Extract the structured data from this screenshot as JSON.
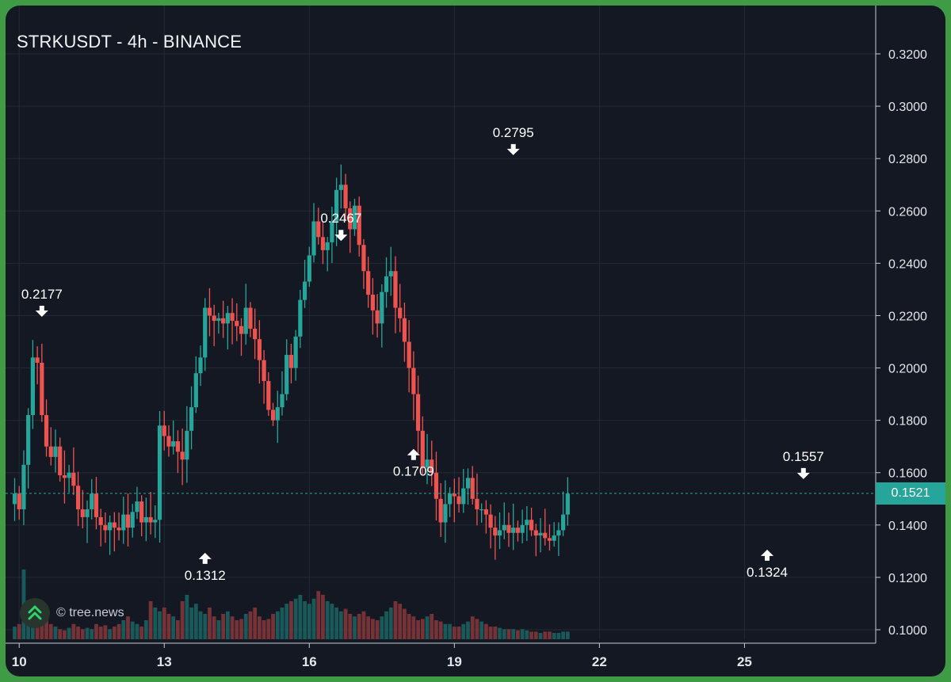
{
  "chart_data": {
    "type": "candlestick",
    "title": "STRKUSDT - 4h - BINANCE",
    "ylim": [
      0.095,
      0.33
    ],
    "y_ticks": [
      "0.3200",
      "0.3000",
      "0.2800",
      "0.2600",
      "0.2400",
      "0.2200",
      "0.2000",
      "0.1800",
      "0.1600",
      "0.1400",
      "0.1200",
      "0.1000"
    ],
    "y_tick_values": [
      0.32,
      0.3,
      0.28,
      0.26,
      0.24,
      0.22,
      0.2,
      0.18,
      0.16,
      0.14,
      0.12,
      0.1
    ],
    "x_ticks": [
      "10",
      "13",
      "16",
      "19",
      "22",
      "25"
    ],
    "x_tick_index": [
      1,
      33,
      65,
      97,
      129,
      161
    ],
    "last_price": "0.1521",
    "last_price_value": 0.1521,
    "up_color": "#26a69a",
    "down_color": "#ef5350",
    "annotations": [
      {
        "label": "0.2177",
        "index": 6,
        "price": 0.2177,
        "dir": "down"
      },
      {
        "label": "0.1312",
        "index": 42,
        "price": 0.1312,
        "dir": "up"
      },
      {
        "label": "0.2467",
        "index": 72,
        "price": 0.2467,
        "dir": "down"
      },
      {
        "label": "0.1709",
        "index": 88,
        "price": 0.1709,
        "dir": "up"
      },
      {
        "label": "0.2795",
        "index": 110,
        "price": 0.2795,
        "dir": "down"
      },
      {
        "label": "0.1324",
        "index": 166,
        "price": 0.1324,
        "dir": "up"
      },
      {
        "label": "0.1557",
        "index": 174,
        "price": 0.1557,
        "dir": "down"
      }
    ],
    "close_path": [
      0.152,
      0.146,
      0.163,
      0.182,
      0.204,
      0.202,
      0.182,
      0.17,
      0.166,
      0.17,
      0.159,
      0.158,
      0.16,
      0.155,
      0.146,
      0.143,
      0.146,
      0.152,
      0.143,
      0.14,
      0.138,
      0.141,
      0.139,
      0.138,
      0.144,
      0.139,
      0.145,
      0.149,
      0.141,
      0.143,
      0.141,
      0.142,
      0.178,
      0.174,
      0.17,
      0.172,
      0.168,
      0.165,
      0.176,
      0.185,
      0.198,
      0.204,
      0.223,
      0.22,
      0.218,
      0.219,
      0.217,
      0.221,
      0.218,
      0.216,
      0.213,
      0.223,
      0.215,
      0.211,
      0.203,
      0.195,
      0.184,
      0.18,
      0.185,
      0.19,
      0.205,
      0.2,
      0.212,
      0.226,
      0.233,
      0.243,
      0.256,
      0.25,
      0.245,
      0.248,
      0.256,
      0.268,
      0.27,
      0.261,
      0.253,
      0.262,
      0.247,
      0.237,
      0.228,
      0.222,
      0.217,
      0.229,
      0.235,
      0.237,
      0.223,
      0.219,
      0.21,
      0.2,
      0.19,
      0.176,
      0.162,
      0.165,
      0.16,
      0.15,
      0.141,
      0.148,
      0.152,
      0.151,
      0.148,
      0.154,
      0.158,
      0.15,
      0.146,
      0.146,
      0.144,
      0.139,
      0.136,
      0.138,
      0.14,
      0.137,
      0.139,
      0.137,
      0.14,
      0.142,
      0.138,
      0.136,
      0.137,
      0.135,
      0.134,
      0.136,
      0.138,
      0.144,
      0.152
    ],
    "volume_path": [
      0.1,
      0.12,
      0.55,
      0.3,
      0.25,
      0.2,
      0.18,
      0.15,
      0.12,
      0.1,
      0.08,
      0.07,
      0.09,
      0.12,
      0.1,
      0.08,
      0.09,
      0.08,
      0.12,
      0.1,
      0.11,
      0.08,
      0.1,
      0.12,
      0.15,
      0.18,
      0.14,
      0.12,
      0.1,
      0.15,
      0.3,
      0.25,
      0.22,
      0.25,
      0.2,
      0.18,
      0.15,
      0.3,
      0.35,
      0.25,
      0.28,
      0.22,
      0.2,
      0.25,
      0.18,
      0.15,
      0.2,
      0.22,
      0.18,
      0.15,
      0.16,
      0.2,
      0.22,
      0.25,
      0.18,
      0.15,
      0.16,
      0.2,
      0.22,
      0.25,
      0.28,
      0.3,
      0.32,
      0.35,
      0.3,
      0.28,
      0.32,
      0.38,
      0.35,
      0.3,
      0.28,
      0.25,
      0.22,
      0.24,
      0.2,
      0.18,
      0.2,
      0.22,
      0.18,
      0.16,
      0.15,
      0.18,
      0.22,
      0.25,
      0.3,
      0.28,
      0.24,
      0.2,
      0.18,
      0.15,
      0.16,
      0.18,
      0.2,
      0.15,
      0.14,
      0.12,
      0.12,
      0.1,
      0.1,
      0.12,
      0.14,
      0.18,
      0.16,
      0.14,
      0.12,
      0.1,
      0.1,
      0.09,
      0.08,
      0.08,
      0.08,
      0.07,
      0.08,
      0.07,
      0.06,
      0.06,
      0.05,
      0.06,
      0.06,
      0.05,
      0.05,
      0.06,
      0.06
    ]
  }
}
